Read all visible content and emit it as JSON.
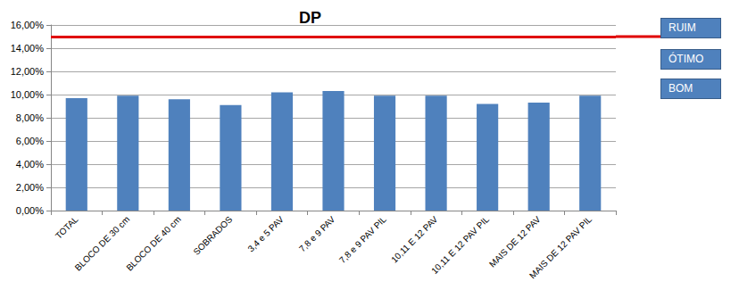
{
  "chart_data": {
    "type": "bar",
    "title": "DP",
    "categories": [
      "TOTAL",
      "BLOCO DE 30 cm",
      "BLOCO DE 40 cm",
      "SOBRADOS",
      "3,4 e 5 PAV",
      "7,8 e 9 PAV",
      "7,8 e 9 PAV PIL",
      "10,11 E 12 PAV",
      "10,11 E 12 PAV PIL",
      "MAIS DE 12 PAV",
      "MAIS DE 12 PAV PIL"
    ],
    "values": [
      9.7,
      9.9,
      9.6,
      9.1,
      10.2,
      10.3,
      9.9,
      9.9,
      9.2,
      9.3,
      9.9
    ],
    "color": "#4f81bd",
    "ylim": [
      0,
      16
    ],
    "yticks": [
      {
        "value": 0,
        "label": "0,00%"
      },
      {
        "value": 2,
        "label": "2,00%"
      },
      {
        "value": 4,
        "label": "4,00%"
      },
      {
        "value": 6,
        "label": "6,00%"
      },
      {
        "value": 8,
        "label": "8,00%"
      },
      {
        "value": 10,
        "label": "10,00%"
      },
      {
        "value": 12,
        "label": "12,00%"
      },
      {
        "value": 14,
        "label": "14,00%"
      },
      {
        "value": 16,
        "label": "16,00%"
      }
    ],
    "grid": true,
    "reference_line": 15,
    "annotations": [
      "RUIM",
      "ÓTIMO",
      "BOM"
    ]
  }
}
